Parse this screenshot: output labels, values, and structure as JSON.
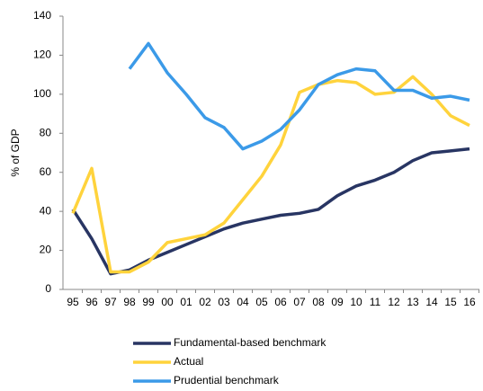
{
  "chart_data": {
    "type": "line",
    "y_label": "% of GDP",
    "categories": [
      "95",
      "96",
      "97",
      "98",
      "99",
      "00",
      "01",
      "02",
      "03",
      "04",
      "05",
      "06",
      "07",
      "08",
      "09",
      "10",
      "11",
      "12",
      "13",
      "14",
      "15",
      "16"
    ],
    "series": [
      {
        "name": "Fundamental-based benchmark",
        "color": "#283563",
        "values": [
          41,
          26,
          8,
          10,
          15,
          19,
          23,
          27,
          31,
          34,
          36,
          38,
          39,
          41,
          48,
          53,
          56,
          60,
          66,
          70,
          71,
          72
        ]
      },
      {
        "name": "Actual",
        "color": "#ffd33c",
        "values": [
          39,
          62,
          9,
          9,
          14,
          24,
          26,
          28,
          34,
          46,
          58,
          74,
          101,
          105,
          107,
          106,
          100,
          101,
          109,
          100,
          89,
          84
        ]
      },
      {
        "name": "Prudential benchmark",
        "color": "#3b9ae8",
        "values": [
          null,
          null,
          null,
          113,
          126,
          111,
          100,
          88,
          83,
          72,
          76,
          82,
          92,
          105,
          110,
          113,
          112,
          102,
          102,
          98,
          99,
          97
        ]
      }
    ],
    "ylim": [
      0,
      140
    ],
    "yticks": [
      0,
      20,
      40,
      60,
      80,
      100,
      120,
      140
    ]
  }
}
